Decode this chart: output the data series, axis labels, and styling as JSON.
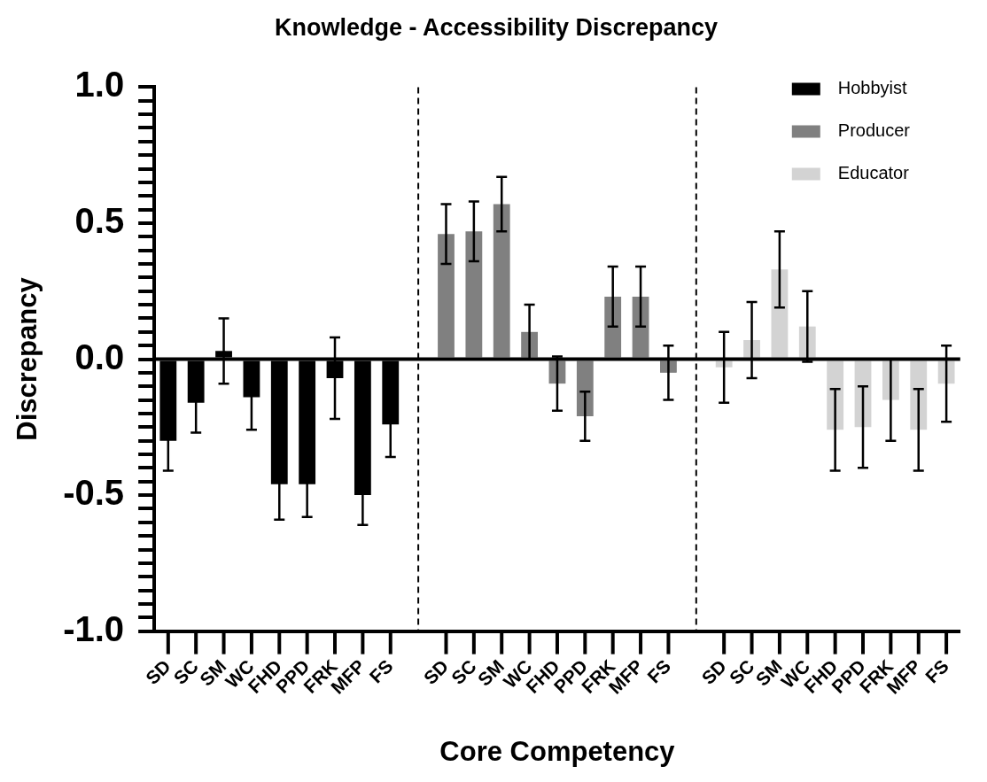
{
  "chart_data": {
    "type": "bar",
    "title": "Knowledge - Accessibility Discrepancy",
    "xlabel": "Core Competency",
    "ylabel": "Discrepancy",
    "categories": [
      "SD",
      "SC",
      "SM",
      "WC",
      "FHD",
      "PPD",
      "FRK",
      "MFP",
      "FS",
      null,
      "SD",
      "SC",
      "SM",
      "WC",
      "FHD",
      "PPD",
      "FRK",
      "MFP",
      "FS",
      null,
      "SD",
      "SC",
      "SM",
      "WC",
      "FHD",
      "PPD",
      "FRK",
      "MFP",
      "FS"
    ],
    "series": [
      {
        "name": "Hobbyist",
        "color": "#000000",
        "values": [
          -0.3,
          -0.16,
          0.03,
          -0.14,
          -0.46,
          -0.46,
          -0.07,
          -0.5,
          -0.24,
          null,
          null,
          null,
          null,
          null,
          null,
          null,
          null,
          null,
          null,
          null,
          null,
          null,
          null,
          null,
          null,
          null,
          null,
          null,
          null
        ],
        "errors": [
          0.11,
          0.11,
          0.12,
          0.12,
          0.13,
          0.12,
          0.15,
          0.11,
          0.12,
          null,
          null,
          null,
          null,
          null,
          null,
          null,
          null,
          null,
          null,
          null,
          null,
          null,
          null,
          null,
          null,
          null,
          null,
          null,
          null
        ]
      },
      {
        "name": "Producer",
        "color": "#808080",
        "values": [
          null,
          null,
          null,
          null,
          null,
          null,
          null,
          null,
          null,
          null,
          0.46,
          0.47,
          0.57,
          0.1,
          -0.09,
          -0.21,
          0.23,
          0.23,
          -0.05,
          null,
          null,
          null,
          null,
          null,
          null,
          null,
          null,
          null,
          null
        ],
        "errors": [
          null,
          null,
          null,
          null,
          null,
          null,
          null,
          null,
          null,
          null,
          0.11,
          0.11,
          0.1,
          0.1,
          0.1,
          0.09,
          0.11,
          0.11,
          0.1,
          null,
          null,
          null,
          null,
          null,
          null,
          null,
          null,
          null,
          null
        ]
      },
      {
        "name": "Educator",
        "color": "#d3d3d3",
        "values": [
          null,
          null,
          null,
          null,
          null,
          null,
          null,
          null,
          null,
          null,
          null,
          null,
          null,
          null,
          null,
          null,
          null,
          null,
          null,
          null,
          -0.03,
          0.07,
          0.33,
          0.12,
          -0.26,
          -0.25,
          -0.15,
          -0.26,
          -0.09
        ],
        "errors": [
          null,
          null,
          null,
          null,
          null,
          null,
          null,
          null,
          null,
          null,
          null,
          null,
          null,
          null,
          null,
          null,
          null,
          null,
          null,
          null,
          0.13,
          0.14,
          0.14,
          0.13,
          0.15,
          0.15,
          0.15,
          0.15,
          0.14
        ]
      }
    ],
    "ylim": [
      -1,
      1
    ],
    "yticks": [
      {
        "value": -1,
        "label": "-1.0"
      },
      {
        "value": -0.95,
        "label": null
      },
      {
        "value": -0.9,
        "label": null
      },
      {
        "value": -0.85,
        "label": null
      },
      {
        "value": -0.8,
        "label": null
      },
      {
        "value": -0.75,
        "label": null
      },
      {
        "value": -0.7,
        "label": null
      },
      {
        "value": -0.65,
        "label": null
      },
      {
        "value": -0.6,
        "label": null
      },
      {
        "value": -0.55,
        "label": null
      },
      {
        "value": -0.5,
        "label": "-0.5"
      },
      {
        "value": -0.45,
        "label": null
      },
      {
        "value": -0.4,
        "label": null
      },
      {
        "value": -0.35,
        "label": null
      },
      {
        "value": -0.3,
        "label": null
      },
      {
        "value": -0.25,
        "label": null
      },
      {
        "value": -0.2,
        "label": null
      },
      {
        "value": -0.15,
        "label": null
      },
      {
        "value": -0.1,
        "label": null
      },
      {
        "value": -0.05,
        "label": null
      },
      {
        "value": 0,
        "label": "0.0"
      },
      {
        "value": 0.05,
        "label": null
      },
      {
        "value": 0.1,
        "label": null
      },
      {
        "value": 0.15,
        "label": null
      },
      {
        "value": 0.2,
        "label": null
      },
      {
        "value": 0.25,
        "label": null
      },
      {
        "value": 0.3,
        "label": null
      },
      {
        "value": 0.35,
        "label": null
      },
      {
        "value": 0.4,
        "label": null
      },
      {
        "value": 0.45,
        "label": null
      },
      {
        "value": 0.5,
        "label": "0.5"
      },
      {
        "value": 0.55,
        "label": null
      },
      {
        "value": 0.6,
        "label": null
      },
      {
        "value": 0.65,
        "label": null
      },
      {
        "value": 0.7,
        "label": null
      },
      {
        "value": 0.75,
        "label": null
      },
      {
        "value": 0.8,
        "label": null
      },
      {
        "value": 0.85,
        "label": null
      },
      {
        "value": 0.9,
        "label": null
      },
      {
        "value": 0.95,
        "label": null
      },
      {
        "value": 1,
        "label": "1.0"
      }
    ],
    "ref_lines": [
      {
        "axis": "y",
        "value": 0,
        "line_style": "solid",
        "color": "#000000"
      }
    ],
    "grid": false,
    "legend": "top right"
  }
}
